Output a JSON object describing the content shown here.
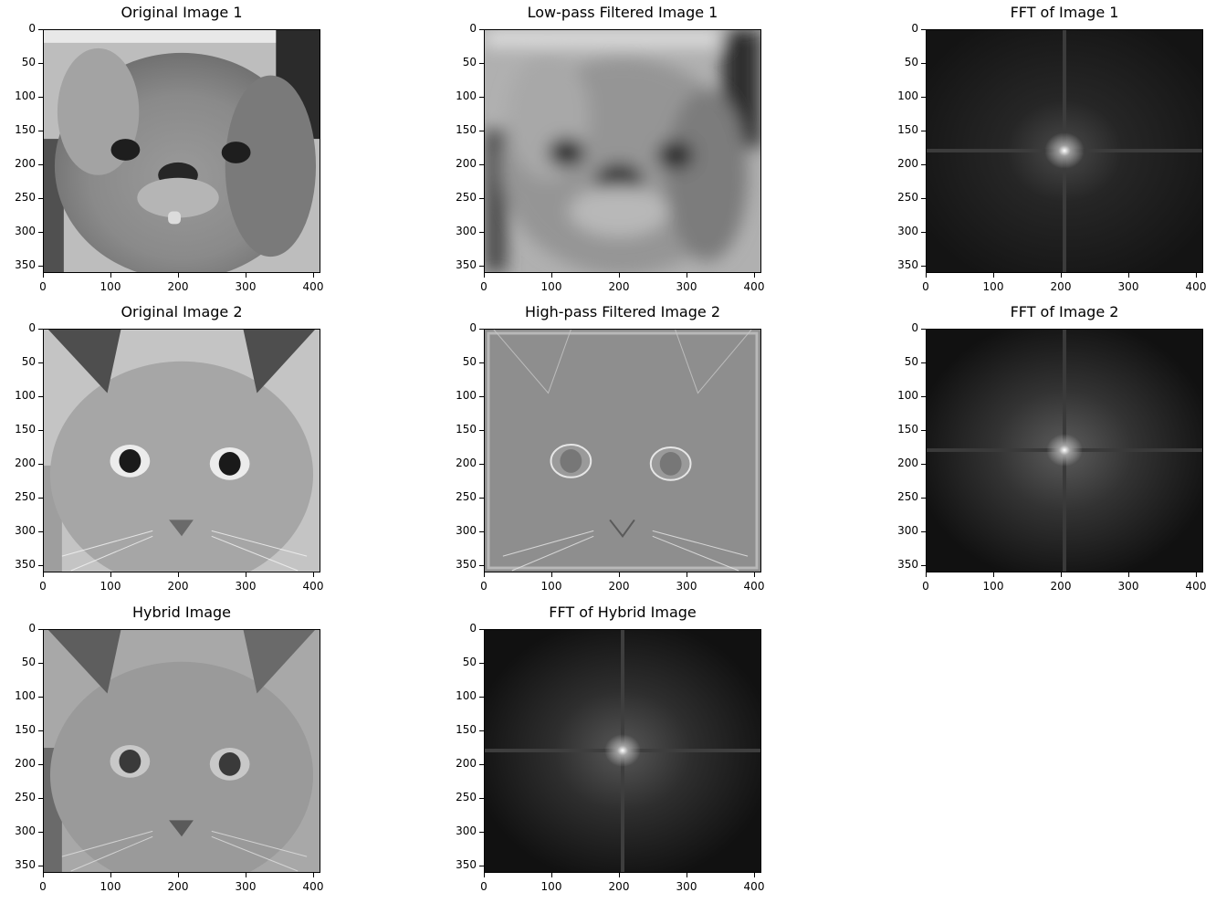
{
  "figure": {
    "panels": [
      {
        "id": "p1",
        "title": "Original Image 1",
        "kind": "photo-dog-sharp"
      },
      {
        "id": "p2",
        "title": "Low-pass Filtered Image 1",
        "kind": "photo-dog-blur"
      },
      {
        "id": "p3",
        "title": "FFT of Image 1",
        "kind": "fft-1"
      },
      {
        "id": "p4",
        "title": "Original Image 2",
        "kind": "photo-cat"
      },
      {
        "id": "p5",
        "title": "High-pass Filtered Image 2",
        "kind": "photo-cat-highpass"
      },
      {
        "id": "p6",
        "title": "FFT of Image 2",
        "kind": "fft-2"
      },
      {
        "id": "p7",
        "title": "Hybrid Image",
        "kind": "photo-hybrid"
      },
      {
        "id": "p8",
        "title": "FFT of Hybrid Image",
        "kind": "fft-hybrid"
      }
    ],
    "x_ticks": [
      "0",
      "100",
      "200",
      "300",
      "400"
    ],
    "y_ticks": [
      "0",
      "50",
      "100",
      "150",
      "200",
      "250",
      "300",
      "350"
    ],
    "image_width": 410,
    "image_height": 362
  }
}
